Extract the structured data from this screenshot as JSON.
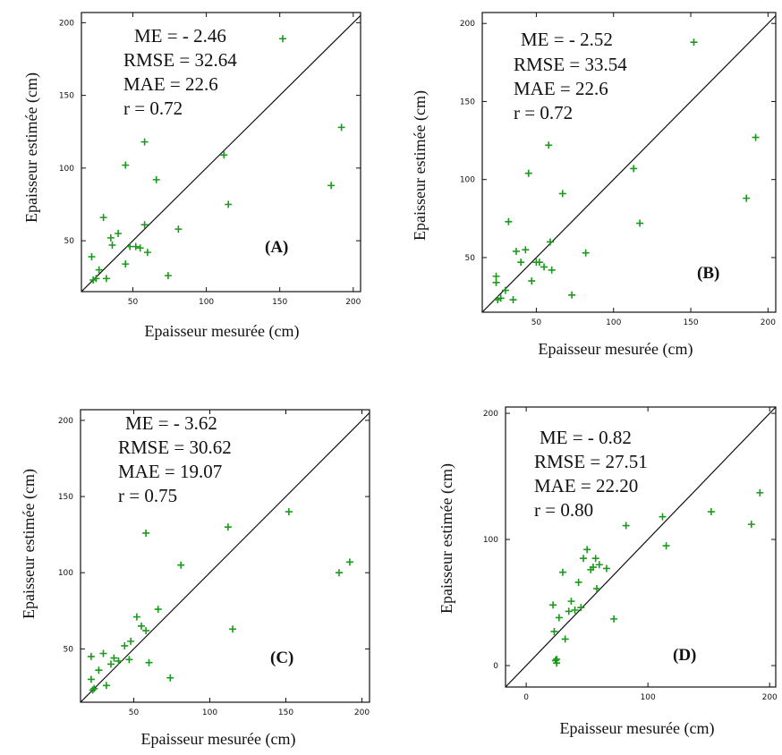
{
  "colors": {
    "points": "#1a9a1a",
    "axes": "#111111",
    "identity_line": "#111111"
  },
  "chart_data": [
    {
      "type": "scatter",
      "panel_label": "(A)",
      "xlabel": "Epaisseur mesurée (cm)",
      "ylabel": "Epaisseur estimée (cm)",
      "xticks": [
        "50",
        "100",
        "150",
        "200"
      ],
      "yticks": [
        "50",
        "100",
        "150",
        "200"
      ],
      "stats": [
        "ME = - 2.46",
        "RMSE = 32.64",
        "MAE = 22.6",
        "r = 0.72"
      ],
      "xlim": [
        15,
        205
      ],
      "ylim": [
        15,
        207
      ],
      "reference_line": "y = x",
      "points": [
        [
          22,
          39
        ],
        [
          23,
          23
        ],
        [
          25,
          24
        ],
        [
          27,
          30
        ],
        [
          30,
          66
        ],
        [
          32,
          24
        ],
        [
          35,
          52
        ],
        [
          36,
          47
        ],
        [
          40,
          55
        ],
        [
          45,
          102
        ],
        [
          45,
          34
        ],
        [
          48,
          46
        ],
        [
          52,
          46
        ],
        [
          55,
          45
        ],
        [
          58,
          118
        ],
        [
          58,
          61
        ],
        [
          60,
          42
        ],
        [
          66,
          92
        ],
        [
          74,
          26
        ],
        [
          81,
          58
        ],
        [
          112,
          109
        ],
        [
          115,
          75
        ],
        [
          152,
          189
        ],
        [
          185,
          88
        ],
        [
          192,
          128
        ]
      ]
    },
    {
      "type": "scatter",
      "panel_label": "(B)",
      "xlabel": "Epaisseur mesurée (cm)",
      "ylabel": "Epaisseur estimée (cm)",
      "xticks": [
        "50",
        "100",
        "150",
        "200"
      ],
      "yticks": [
        "50",
        "100",
        "150",
        "200"
      ],
      "stats": [
        "ME = - 2.52",
        "RMSE = 33.54",
        "MAE = 22.6",
        "r = 0.72"
      ],
      "xlim": [
        15,
        205
      ],
      "ylim": [
        15,
        207
      ],
      "reference_line": "y = x",
      "points": [
        [
          24,
          38
        ],
        [
          24,
          34
        ],
        [
          25,
          23
        ],
        [
          27,
          24
        ],
        [
          30,
          29
        ],
        [
          32,
          73
        ],
        [
          35,
          23
        ],
        [
          37,
          54
        ],
        [
          40,
          47
        ],
        [
          43,
          55
        ],
        [
          45,
          104
        ],
        [
          47,
          35
        ],
        [
          50,
          47
        ],
        [
          52,
          47
        ],
        [
          55,
          44
        ],
        [
          58,
          122
        ],
        [
          59,
          60
        ],
        [
          60,
          42
        ],
        [
          67,
          91
        ],
        [
          73,
          26
        ],
        [
          82,
          53
        ],
        [
          113,
          107
        ],
        [
          117,
          72
        ],
        [
          152,
          188
        ],
        [
          186,
          88
        ],
        [
          192,
          127
        ]
      ]
    },
    {
      "type": "scatter",
      "panel_label": "(C)",
      "xlabel": "Epaisseur mesurée (cm)",
      "ylabel": "Epaisseur estimée (cm)",
      "xticks": [
        "50",
        "100",
        "150",
        "200"
      ],
      "yticks": [
        "50",
        "100",
        "150",
        "200"
      ],
      "stats": [
        "ME = - 3.62",
        "RMSE = 30.62",
        "MAE = 19.07",
        "r = 0.75"
      ],
      "xlim": [
        15,
        205
      ],
      "ylim": [
        15,
        207
      ],
      "reference_line": "y = x",
      "points": [
        [
          22,
          45
        ],
        [
          22,
          30
        ],
        [
          23,
          23
        ],
        [
          24,
          24
        ],
        [
          27,
          36
        ],
        [
          30,
          47
        ],
        [
          32,
          26
        ],
        [
          35,
          40
        ],
        [
          37,
          44
        ],
        [
          40,
          42
        ],
        [
          44,
          52
        ],
        [
          47,
          43
        ],
        [
          48,
          55
        ],
        [
          52,
          71
        ],
        [
          55,
          65
        ],
        [
          58,
          126
        ],
        [
          58,
          62
        ],
        [
          60,
          41
        ],
        [
          66,
          76
        ],
        [
          74,
          31
        ],
        [
          81,
          105
        ],
        [
          112,
          130
        ],
        [
          115,
          63
        ],
        [
          152,
          140
        ],
        [
          185,
          100
        ],
        [
          192,
          107
        ]
      ]
    },
    {
      "type": "scatter",
      "panel_label": "(D)",
      "xlabel": "Epaisseur mesurée (cm)",
      "ylabel": "Epaisseur estimée (cm)",
      "xticks": [
        "0",
        "100",
        "200"
      ],
      "yticks": [
        "0",
        "100",
        "200"
      ],
      "stats": [
        "ME = - 0.82",
        "RMSE = 27.51",
        "MAE = 22.20",
        "r = 0.80"
      ],
      "xlim": [
        -17,
        205
      ],
      "ylim": [
        -17,
        205
      ],
      "reference_line": "y = x",
      "points": [
        [
          22,
          48
        ],
        [
          23,
          27
        ],
        [
          24,
          4
        ],
        [
          25,
          2
        ],
        [
          25,
          5
        ],
        [
          27,
          38
        ],
        [
          30,
          74
        ],
        [
          32,
          21
        ],
        [
          35,
          43
        ],
        [
          37,
          51
        ],
        [
          40,
          44
        ],
        [
          43,
          66
        ],
        [
          45,
          46
        ],
        [
          47,
          85
        ],
        [
          50,
          92
        ],
        [
          53,
          76
        ],
        [
          55,
          78
        ],
        [
          57,
          85
        ],
        [
          58,
          61
        ],
        [
          60,
          80
        ],
        [
          66,
          77
        ],
        [
          72,
          37
        ],
        [
          82,
          111
        ],
        [
          112,
          118
        ],
        [
          115,
          95
        ],
        [
          152,
          122
        ],
        [
          185,
          112
        ],
        [
          192,
          137
        ]
      ]
    }
  ]
}
